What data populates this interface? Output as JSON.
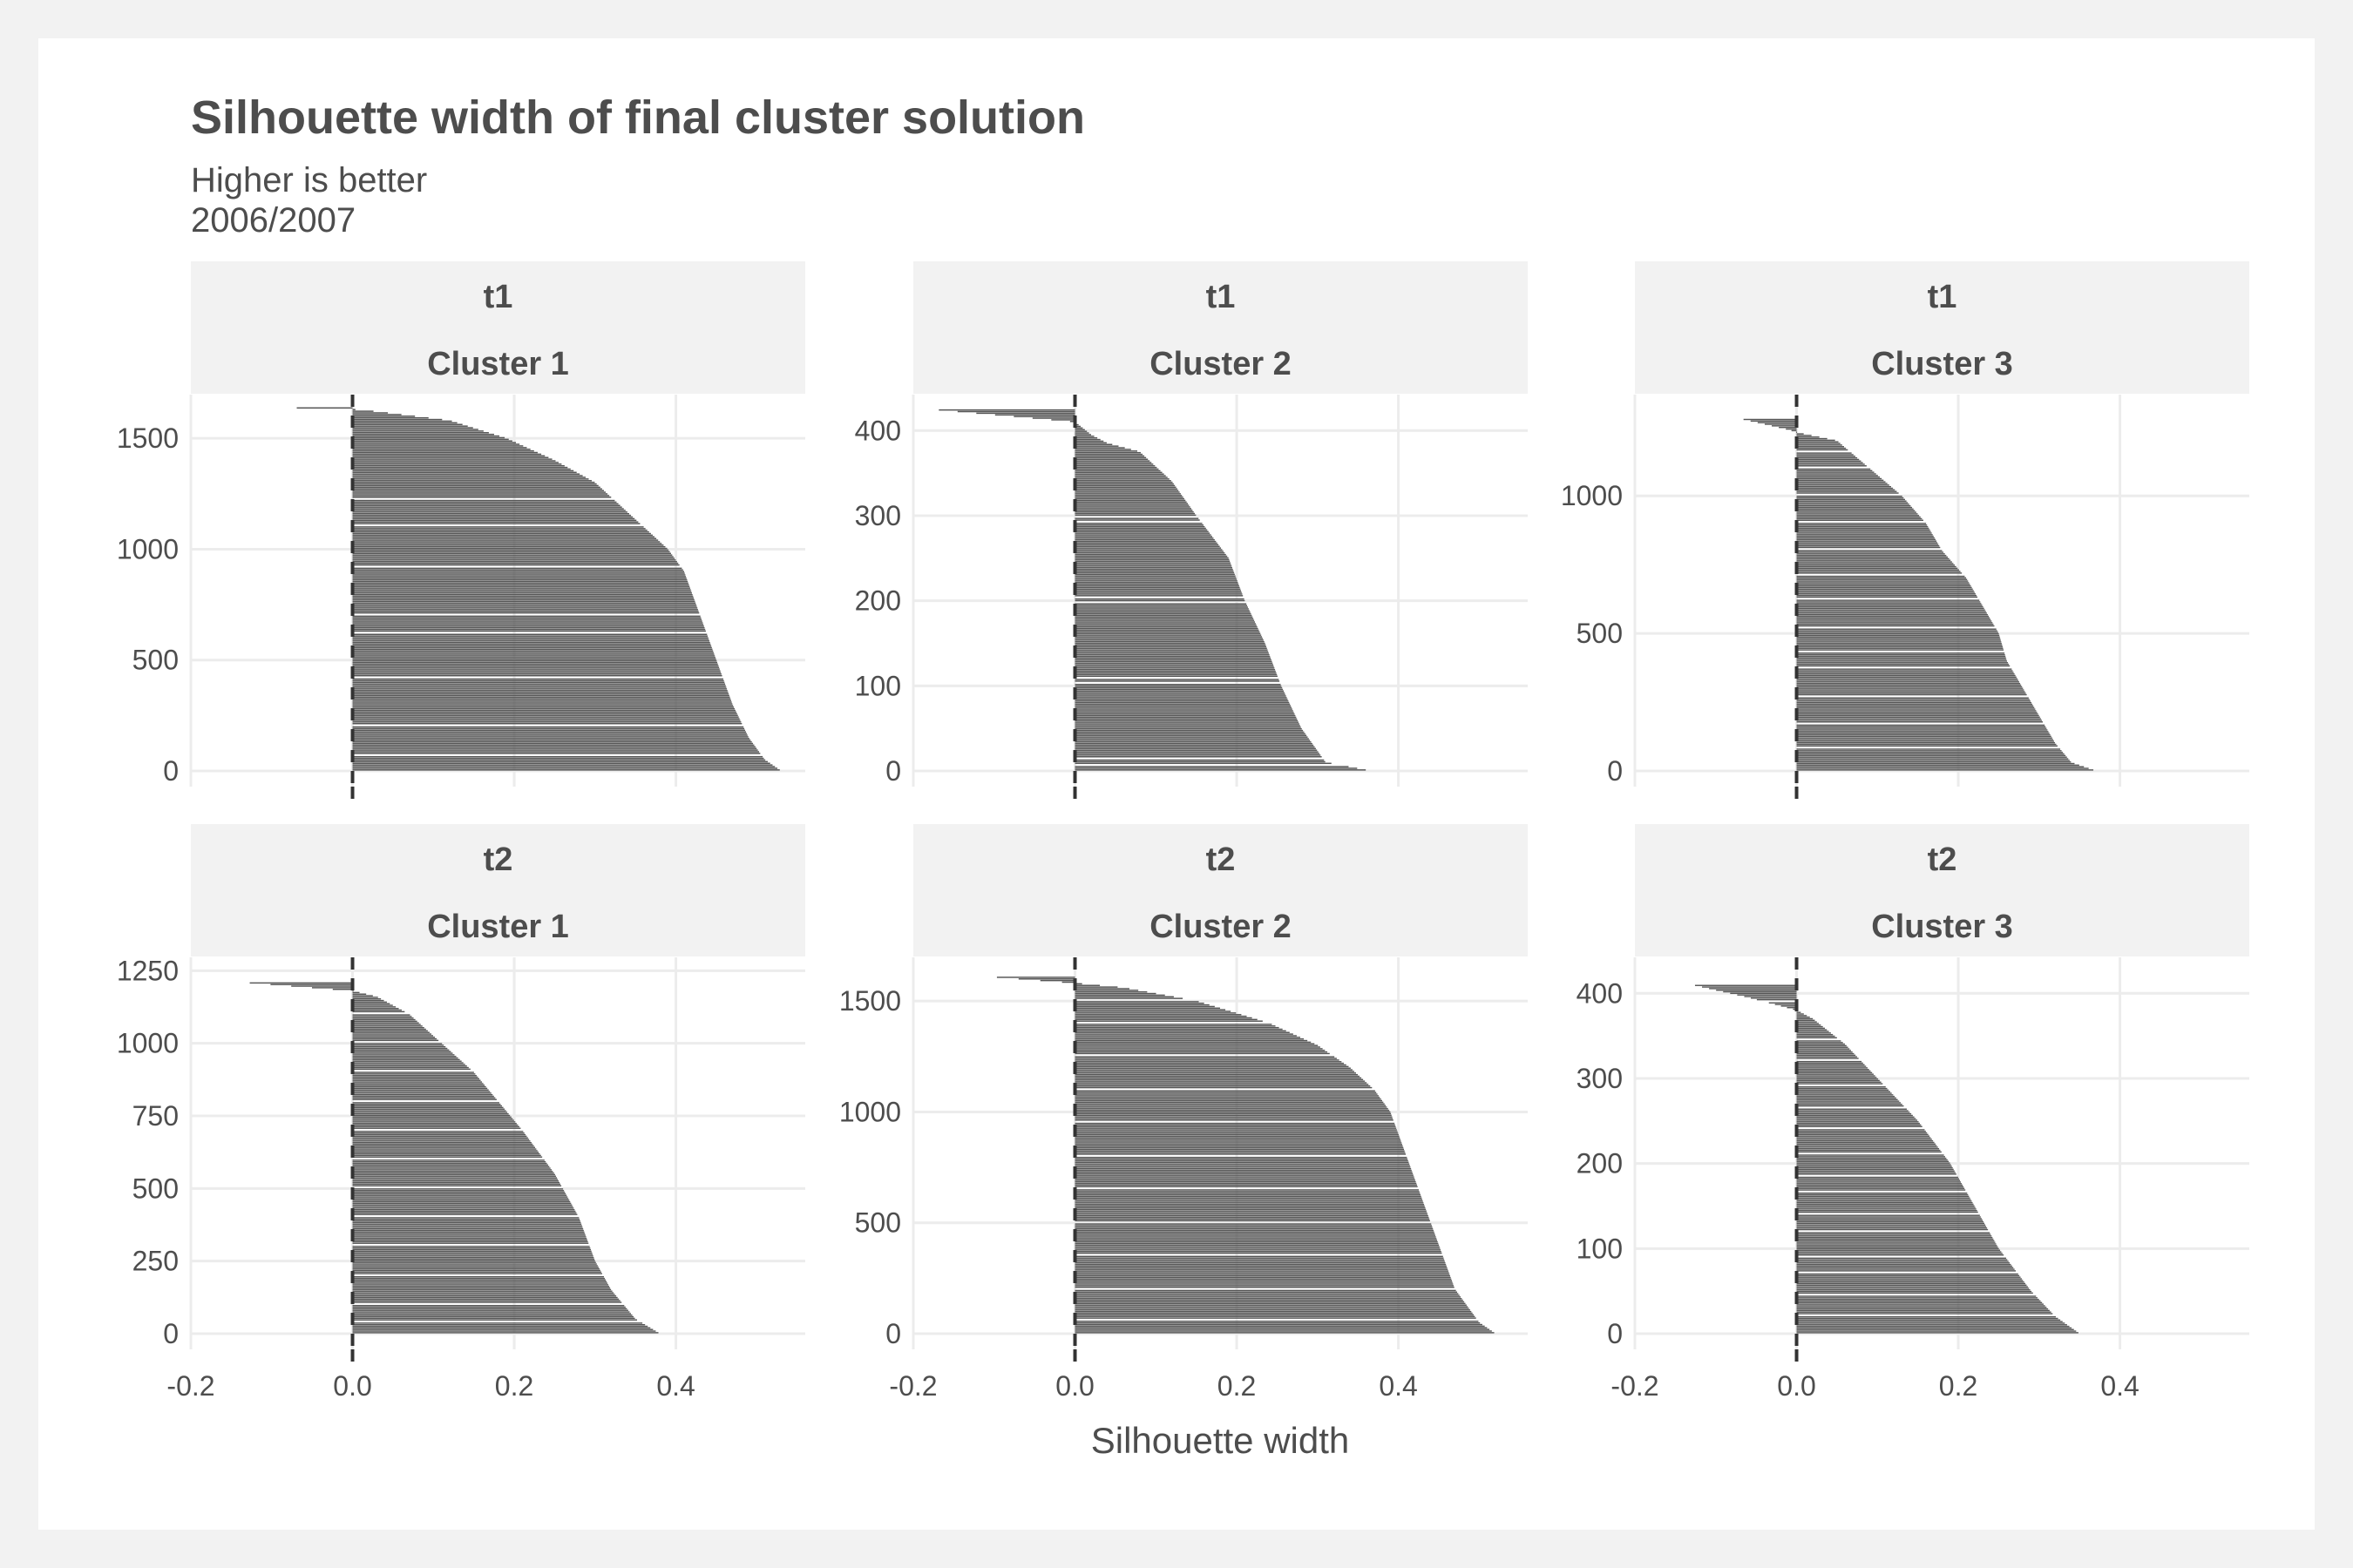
{
  "title": "Silhouette width of final cluster solution",
  "subtitle_line1": "Higher is better",
  "subtitle_line2": "2006/2007",
  "chart_data": {
    "type": "bar",
    "orientation": "horizontal",
    "xlabel": "Silhouette width",
    "ylabel": "",
    "xlim": [
      -0.2,
      0.56
    ],
    "x_ticks": [
      "-0.2",
      "0.0",
      "0.2",
      "0.4"
    ],
    "x_tick_values": [
      -0.2,
      0.0,
      0.2,
      0.4
    ],
    "zero_line": "dashed",
    "grid": true,
    "bar_color": "#555555",
    "panels": [
      {
        "row_label": "t1",
        "col_label": "Cluster 1",
        "ylim": [
          0,
          1650
        ],
        "y_ticks": [
          0,
          500,
          1000,
          1500
        ],
        "gaps": [
          70,
          200,
          420,
          620,
          700,
          920,
          1100,
          1220
        ],
        "profile": [
          [
            0,
            0.53
          ],
          [
            50,
            0.51
          ],
          [
            150,
            0.49
          ],
          [
            300,
            0.47
          ],
          [
            500,
            0.45
          ],
          [
            700,
            0.43
          ],
          [
            900,
            0.41
          ],
          [
            1000,
            0.39
          ],
          [
            1100,
            0.36
          ],
          [
            1200,
            0.33
          ],
          [
            1300,
            0.3
          ],
          [
            1400,
            0.25
          ],
          [
            1500,
            0.19
          ],
          [
            1580,
            0.12
          ],
          [
            1620,
            0.03
          ],
          [
            1630,
            0.0
          ],
          [
            1640,
            -0.11
          ]
        ]
      },
      {
        "row_label": "t1",
        "col_label": "Cluster 2",
        "ylim": [
          0,
          430
        ],
        "y_ticks": [
          0,
          100,
          200,
          300,
          400
        ],
        "gaps": [
          5,
          13,
          103,
          108,
          197,
          202,
          292,
          297
        ],
        "profile": [
          [
            0,
            0.365
          ],
          [
            10,
            0.31
          ],
          [
            50,
            0.28
          ],
          [
            100,
            0.255
          ],
          [
            150,
            0.235
          ],
          [
            200,
            0.21
          ],
          [
            250,
            0.19
          ],
          [
            300,
            0.15
          ],
          [
            340,
            0.12
          ],
          [
            375,
            0.08
          ],
          [
            385,
            0.04
          ],
          [
            395,
            0.02
          ],
          [
            410,
            0.0
          ],
          [
            425,
            -0.18
          ]
        ]
      },
      {
        "row_label": "t1",
        "col_label": "Cluster 3",
        "ylim": [
          0,
          1330
        ],
        "y_ticks": [
          0,
          500,
          1000
        ],
        "gaps": [
          80,
          170,
          270,
          370,
          430,
          520,
          620,
          710,
          800,
          900,
          1000,
          1100,
          1160
        ],
        "profile": [
          [
            0,
            0.37
          ],
          [
            30,
            0.34
          ],
          [
            100,
            0.32
          ],
          [
            200,
            0.3
          ],
          [
            300,
            0.28
          ],
          [
            400,
            0.26
          ],
          [
            500,
            0.25
          ],
          [
            600,
            0.23
          ],
          [
            700,
            0.21
          ],
          [
            800,
            0.18
          ],
          [
            900,
            0.16
          ],
          [
            1000,
            0.13
          ],
          [
            1100,
            0.09
          ],
          [
            1200,
            0.05
          ],
          [
            1230,
            0.0
          ],
          [
            1240,
            -0.01
          ],
          [
            1280,
            -0.07
          ]
        ]
      },
      {
        "row_label": "t2",
        "col_label": "Cluster 1",
        "ylim": [
          0,
          1260
        ],
        "y_ticks": [
          0,
          250,
          500,
          750,
          1000,
          1250
        ],
        "gaps": [
          40,
          100,
          200,
          300,
          400,
          500,
          600,
          700,
          800,
          900,
          1000,
          1100
        ],
        "profile": [
          [
            0,
            0.38
          ],
          [
            50,
            0.35
          ],
          [
            150,
            0.32
          ],
          [
            250,
            0.3
          ],
          [
            400,
            0.28
          ],
          [
            550,
            0.25
          ],
          [
            700,
            0.21
          ],
          [
            800,
            0.18
          ],
          [
            900,
            0.15
          ],
          [
            1000,
            0.11
          ],
          [
            1100,
            0.07
          ],
          [
            1160,
            0.03
          ],
          [
            1180,
            0.0
          ],
          [
            1210,
            -0.14
          ]
        ]
      },
      {
        "row_label": "t2",
        "col_label": "Cluster 2",
        "ylim": [
          0,
          1650
        ],
        "y_ticks": [
          0,
          500,
          1000,
          1500
        ],
        "gaps": [
          60,
          200,
          350,
          500,
          650,
          800,
          950,
          1100,
          1250,
          1400,
          1500
        ],
        "profile": [
          [
            0,
            0.52
          ],
          [
            50,
            0.5
          ],
          [
            200,
            0.47
          ],
          [
            400,
            0.45
          ],
          [
            600,
            0.43
          ],
          [
            800,
            0.41
          ],
          [
            1000,
            0.39
          ],
          [
            1100,
            0.37
          ],
          [
            1200,
            0.34
          ],
          [
            1300,
            0.3
          ],
          [
            1400,
            0.24
          ],
          [
            1500,
            0.15
          ],
          [
            1560,
            0.06
          ],
          [
            1580,
            0.0
          ],
          [
            1610,
            -0.11
          ]
        ]
      },
      {
        "row_label": "t2",
        "col_label": "Cluster 3",
        "ylim": [
          0,
          430
        ],
        "y_ticks": [
          0,
          100,
          200,
          300,
          400
        ],
        "gaps": [
          20,
          45,
          70,
          90,
          120,
          140,
          165,
          185,
          210,
          240,
          265,
          290,
          320,
          345,
          390
        ],
        "profile": [
          [
            0,
            0.35
          ],
          [
            20,
            0.32
          ],
          [
            50,
            0.29
          ],
          [
            100,
            0.25
          ],
          [
            150,
            0.22
          ],
          [
            200,
            0.19
          ],
          [
            250,
            0.15
          ],
          [
            300,
            0.1
          ],
          [
            340,
            0.06
          ],
          [
            370,
            0.02
          ],
          [
            380,
            0.0
          ],
          [
            395,
            -0.06
          ],
          [
            410,
            -0.13
          ]
        ]
      }
    ]
  }
}
